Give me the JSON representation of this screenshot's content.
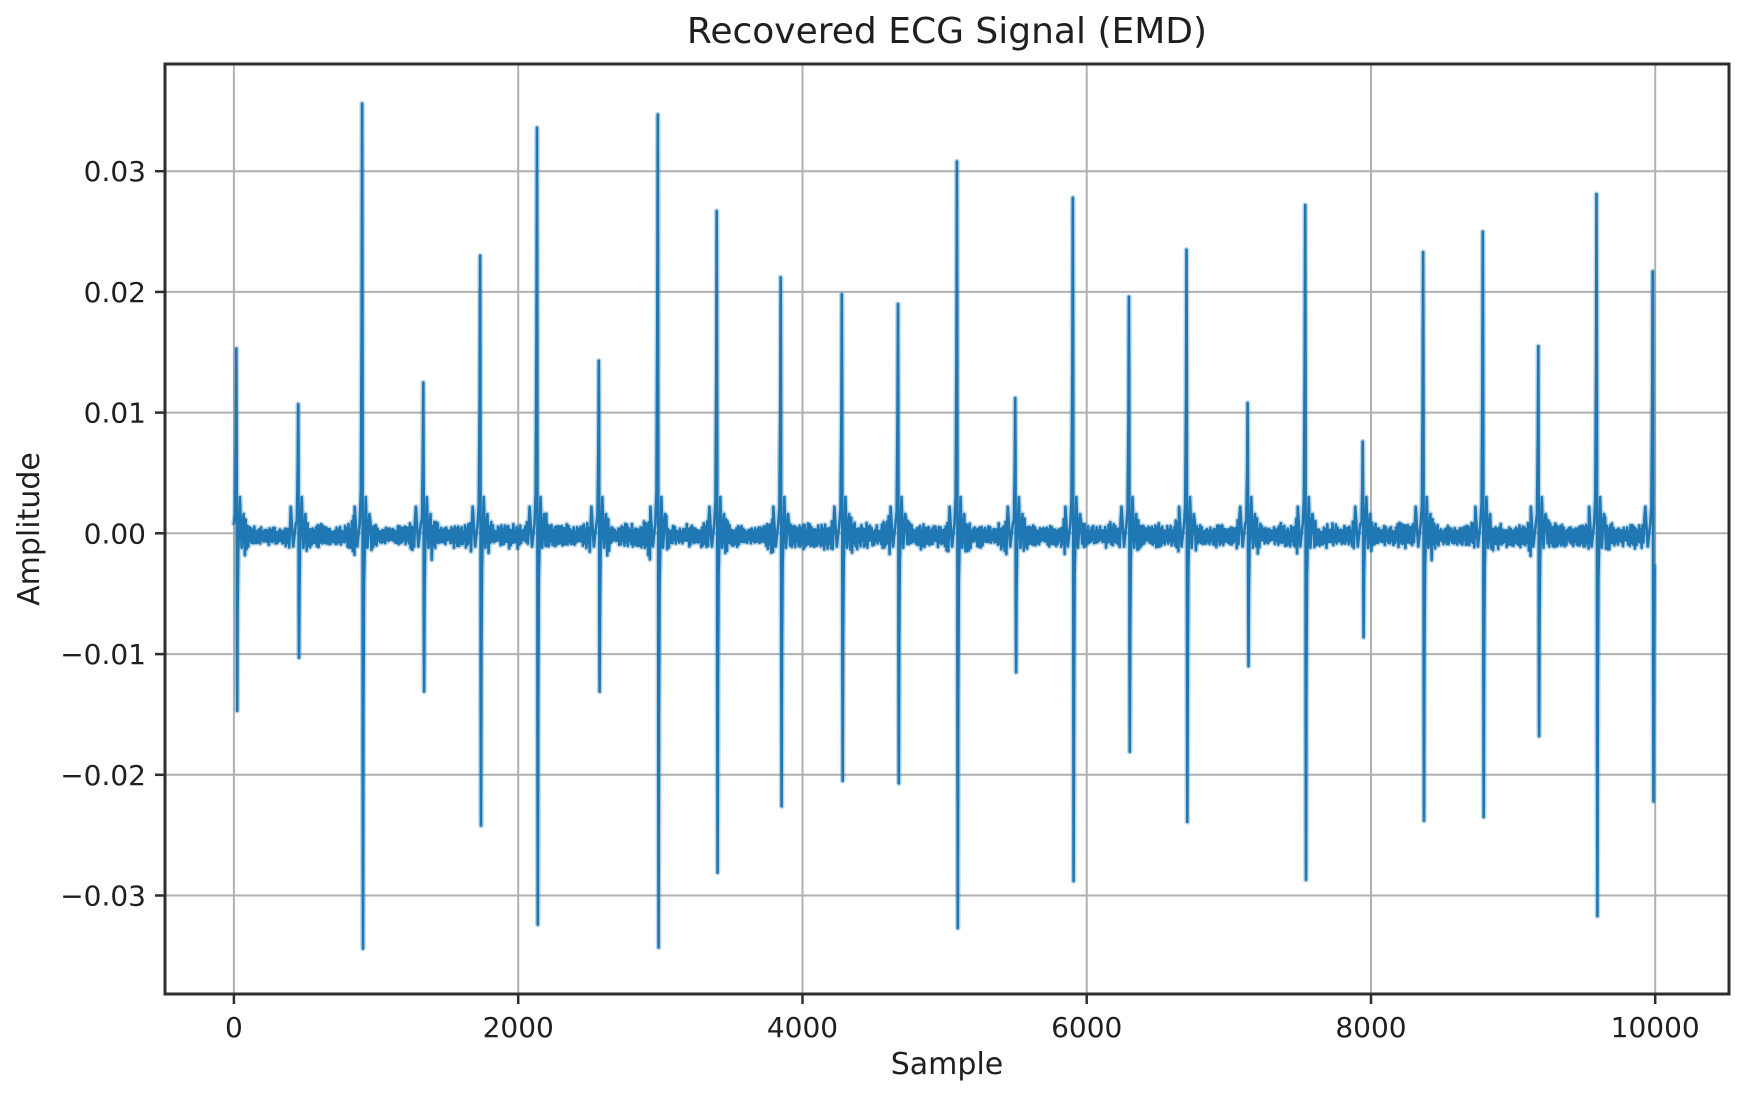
{
  "chart_data": {
    "type": "line",
    "title": "Recovered ECG Signal (EMD)",
    "xlabel": "Sample",
    "ylabel": "Amplitude",
    "legend": null,
    "grid": true,
    "line_color": "#1f77b4",
    "line_halo_color": "rgba(31,119,180,0.30)",
    "grid_color": "#b0b0b0",
    "axes_color": "#2e2e2e",
    "text_color": "#1f1f1f",
    "x_ticks": [
      0,
      2000,
      4000,
      6000,
      8000,
      10000
    ],
    "y_ticks": [
      0.03,
      0.02,
      0.01,
      0.0,
      -0.01,
      -0.02,
      -0.03
    ],
    "xlim": [
      -485,
      10519
    ],
    "ylim": [
      -0.03816,
      0.03888
    ],
    "n_samples": 10000,
    "baseline_offset": -0.0002,
    "noise_base": 0.0006,
    "noise_var": 0.0007,
    "beat_packet": 0.0028,
    "beats": [
      {
        "sample": 20,
        "peak": 0.0153,
        "trough": -0.0147
      },
      {
        "sample": 455,
        "peak": 0.0107,
        "trough": -0.0103
      },
      {
        "sample": 905,
        "peak": 0.0356,
        "trough": -0.0344
      },
      {
        "sample": 1335,
        "peak": 0.0125,
        "trough": -0.0131
      },
      {
        "sample": 1735,
        "peak": 0.023,
        "trough": -0.0242
      },
      {
        "sample": 2135,
        "peak": 0.0336,
        "trough": -0.0324
      },
      {
        "sample": 2570,
        "peak": 0.0143,
        "trough": -0.0131
      },
      {
        "sample": 2985,
        "peak": 0.0347,
        "trough": -0.0343
      },
      {
        "sample": 3400,
        "peak": 0.0267,
        "trough": -0.0281
      },
      {
        "sample": 3850,
        "peak": 0.0212,
        "trough": -0.0226
      },
      {
        "sample": 4280,
        "peak": 0.0198,
        "trough": -0.0205
      },
      {
        "sample": 4675,
        "peak": 0.019,
        "trough": -0.0207
      },
      {
        "sample": 5090,
        "peak": 0.0308,
        "trough": -0.0327
      },
      {
        "sample": 5500,
        "peak": 0.0112,
        "trough": -0.0115
      },
      {
        "sample": 5905,
        "peak": 0.0278,
        "trough": -0.0288
      },
      {
        "sample": 6300,
        "peak": 0.0196,
        "trough": -0.0181
      },
      {
        "sample": 6705,
        "peak": 0.0235,
        "trough": -0.0239
      },
      {
        "sample": 7135,
        "peak": 0.0108,
        "trough": -0.011
      },
      {
        "sample": 7540,
        "peak": 0.0272,
        "trough": -0.0287
      },
      {
        "sample": 7945,
        "peak": 0.0076,
        "trough": -0.0086
      },
      {
        "sample": 8370,
        "peak": 0.0233,
        "trough": -0.0238
      },
      {
        "sample": 8790,
        "peak": 0.025,
        "trough": -0.0235
      },
      {
        "sample": 9180,
        "peak": 0.0155,
        "trough": -0.0168
      },
      {
        "sample": 9590,
        "peak": 0.0281,
        "trough": -0.0317
      },
      {
        "sample": 9985,
        "peak": 0.0217,
        "trough": -0.0222
      }
    ]
  }
}
